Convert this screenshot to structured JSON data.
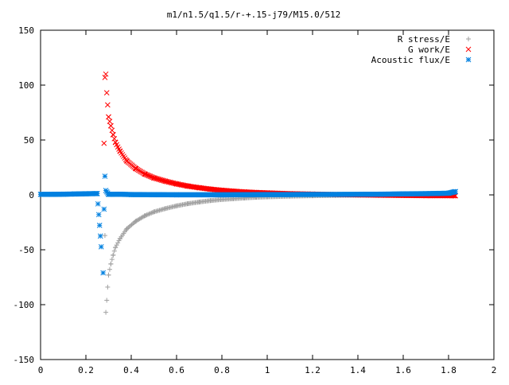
{
  "chart_data": {
    "type": "scatter",
    "title": "m1/n1.5/q1.5/r-+.15-j79/M15.0/512",
    "xlabel": "",
    "ylabel": "",
    "xlim": [
      0,
      2
    ],
    "ylim": [
      -150,
      150
    ],
    "x_ticks": [
      "0",
      "0.2",
      "0.4",
      "0.6",
      "0.8",
      "1",
      "1.2",
      "1.4",
      "1.6",
      "1.8",
      "2"
    ],
    "y_ticks": [
      "150",
      "100",
      "50",
      "0",
      "-50",
      "-100",
      "-150"
    ],
    "grid": false,
    "legend_position": "top-right",
    "series": [
      {
        "name": "R stress/E",
        "marker": "+",
        "color": "#a0a0a0",
        "sample": {
          "x": [
            0.284,
            0.288,
            0.292,
            0.296,
            0.3,
            0.31,
            0.32,
            0.33,
            0.35,
            0.38,
            0.42,
            0.46,
            0.5,
            0.55,
            0.6,
            0.65,
            0.7,
            0.75,
            0.8,
            0.85,
            0.9,
            0.95,
            1.0,
            1.1,
            1.2,
            1.3,
            1.4,
            1.5,
            1.6,
            1.7,
            1.8,
            1.83
          ],
          "y": [
            -37,
            -107,
            -96,
            -84,
            -73,
            -63,
            -55,
            -48,
            -40,
            -31,
            -24,
            -19,
            -15.5,
            -12.5,
            -10,
            -8,
            -6.5,
            -5.2,
            -4.2,
            -3.5,
            -2.8,
            -2.2,
            -1.8,
            -1.2,
            -0.8,
            -0.5,
            -0.3,
            -0.2,
            -0.1,
            0,
            0.5,
            1.5
          ]
        }
      },
      {
        "name": "G work/E",
        "marker": "x",
        "color": "#ff0000",
        "sample": {
          "x": [
            0.28,
            0.284,
            0.288,
            0.292,
            0.296,
            0.3,
            0.31,
            0.32,
            0.33,
            0.35,
            0.38,
            0.42,
            0.46,
            0.5,
            0.55,
            0.6,
            0.65,
            0.7,
            0.75,
            0.8,
            0.85,
            0.9,
            0.95,
            1.0,
            1.1,
            1.2,
            1.3,
            1.4,
            1.5,
            1.6,
            1.7,
            1.83
          ],
          "y": [
            47,
            107,
            110,
            93,
            82,
            71,
            63,
            55,
            48,
            40,
            31,
            24,
            19,
            15.5,
            12.5,
            10,
            8,
            6.5,
            5.2,
            4.2,
            3.4,
            2.7,
            2.2,
            1.8,
            1.1,
            0.7,
            0.3,
            0,
            -0.3,
            -0.5,
            -0.7,
            -0.8
          ]
        }
      },
      {
        "name": "Acoustic flux/E",
        "marker": "*",
        "color": "#0080e0",
        "sample": {
          "x": [
            0.0,
            0.05,
            0.1,
            0.15,
            0.2,
            0.25,
            0.276,
            0.28,
            0.284,
            0.288,
            0.3,
            0.35,
            0.4,
            0.5,
            0.6,
            0.7,
            0.8,
            0.9,
            1.0,
            1.1,
            1.2,
            1.3,
            1.4,
            1.5,
            1.6,
            1.7,
            1.8,
            1.83
          ],
          "y": [
            0.5,
            0.5,
            0.6,
            0.8,
            1.0,
            1.2,
            -71,
            -13,
            17,
            4,
            0.5,
            0.6,
            0.3,
            0.2,
            0.1,
            0.1,
            0.1,
            0.2,
            0.3,
            0.3,
            0.4,
            0.4,
            0.5,
            0.6,
            0.9,
            1.1,
            1.5,
            3.0
          ]
        }
      }
    ]
  }
}
